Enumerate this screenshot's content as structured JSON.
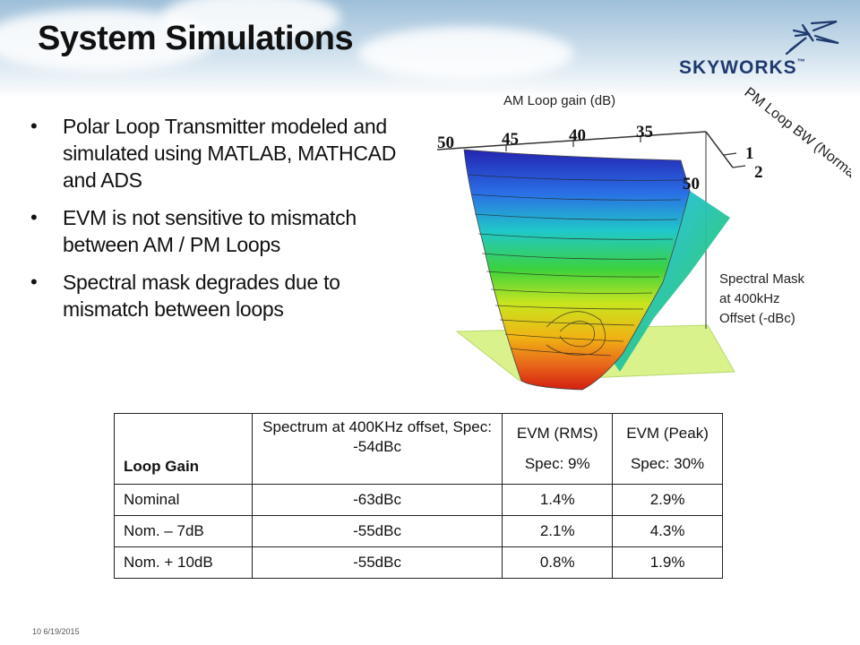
{
  "slide": {
    "title": "System Simulations",
    "logo_text": "SKYWORKS",
    "logo_tm": "™",
    "bullets": [
      "Polar Loop Transmitter modeled and simulated using MATLAB, MATHCAD and ADS",
      "EVM is not sensitive to mismatch between AM / PM Loops",
      "Spectral mask degrades due to mismatch between loops"
    ],
    "footer_page": "10",
    "footer_date": "6/19/2015"
  },
  "plot": {
    "am_axis_label": "AM Loop gain (dB)",
    "am_ticks": [
      "50",
      "45",
      "40",
      "35"
    ],
    "pm_axis_label": "PM Loop BW (Normalized)",
    "pm_ticks": [
      "1",
      "2"
    ],
    "z_tick": "50",
    "z_label_lines": [
      "Spectral Mask",
      "at 400kHz",
      "Offset (-dBc)"
    ],
    "colors": {
      "floor": "#d9f28c",
      "low": "#1a1aa8",
      "high": "#d42a12"
    }
  },
  "table": {
    "headers": {
      "loop_gain": "Loop Gain",
      "spectrum": "Spectrum at 400KHz offset, Spec: -54dBc",
      "evm_rms": "EVM (RMS)",
      "evm_rms_spec": "Spec: 9%",
      "evm_peak": "EVM (Peak)",
      "evm_peak_spec": "Spec: 30%"
    },
    "rows": [
      {
        "loop_gain": "Nominal",
        "spectrum": "-63dBc",
        "evm_rms": "1.4%",
        "evm_peak": "2.9%"
      },
      {
        "loop_gain": "Nom. – 7dB",
        "spectrum": "-55dBc",
        "evm_rms": "2.1%",
        "evm_peak": "4.3%"
      },
      {
        "loop_gain": "Nom. + 10dB",
        "spectrum": "-55dBc",
        "evm_rms": "0.8%",
        "evm_peak": "1.9%"
      }
    ]
  }
}
